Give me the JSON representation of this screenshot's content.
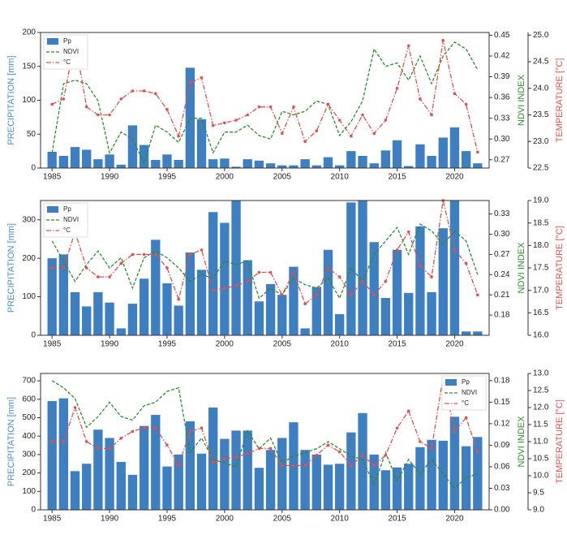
{
  "chart_data": [
    {
      "type": "bar",
      "y_label": "PRECIPITATION [mm]",
      "y2_label": "NDVI INDEX",
      "y3_label": "TEMPERATURE [°C]",
      "legend": "upper left",
      "x": [
        1985,
        1986,
        1987,
        1988,
        1989,
        1990,
        1991,
        1992,
        1993,
        1994,
        1995,
        1996,
        1997,
        1998,
        1999,
        2000,
        2001,
        2002,
        2003,
        2004,
        2005,
        2006,
        2007,
        2008,
        2009,
        2010,
        2011,
        2012,
        2013,
        2014,
        2015,
        2016,
        2017,
        2018,
        2019,
        2020,
        2021,
        2022
      ],
      "xlim": [
        1984,
        2023
      ],
      "xticks": [
        1985,
        1990,
        1995,
        2000,
        2005,
        2010,
        2015,
        2020
      ],
      "ylim": [
        0,
        200
      ],
      "yticks": [
        0,
        50,
        100,
        150,
        200
      ],
      "y2lim": [
        0.258,
        0.454
      ],
      "y2ticks": [
        0.27,
        {
          "value": 0.3,
          "label": "0.30"
        },
        0.33,
        0.36,
        0.39,
        0.42,
        0.45
      ],
      "y3lim": [
        22.5,
        25.05
      ],
      "y3ticks": [
        22.5,
        {
          "value": 23,
          "label": "23.0"
        },
        23.5,
        {
          "value": 24,
          "label": "24.0"
        },
        24.5,
        {
          "value": 25,
          "label": "25.0"
        }
      ],
      "series": [
        {
          "name": "Pp",
          "color": "#3d7fc0",
          "values": [
            24,
            18,
            31,
            27,
            13,
            20,
            5,
            63,
            34,
            12,
            20,
            12,
            148,
            72,
            13,
            14,
            2,
            13,
            11,
            7,
            4,
            4,
            13,
            4,
            16,
            4,
            25,
            18,
            7,
            26,
            41,
            3,
            35,
            18,
            45,
            60,
            25,
            7
          ]
        },
        {
          "name": "NDVI",
          "color": "#2e8b2e",
          "axis": "y2",
          "values": [
            0.28,
            0.38,
            0.385,
            0.38,
            0.355,
            0.28,
            0.31,
            0.3,
            0.265,
            0.32,
            0.31,
            0.295,
            0.33,
            0.33,
            0.28,
            0.31,
            0.31,
            0.32,
            0.305,
            0.3,
            0.34,
            0.335,
            0.34,
            0.355,
            0.35,
            0.305,
            0.325,
            0.355,
            0.43,
            0.405,
            0.41,
            0.385,
            0.42,
            0.38,
            0.42,
            0.44,
            0.43,
            0.4
          ]
        },
        {
          "name": "°C",
          "color": "#e05050",
          "axis": "y3",
          "values": [
            23.7,
            23.8,
            24.9,
            23.65,
            23.5,
            23.5,
            23.8,
            23.95,
            23.95,
            23.9,
            23.6,
            23.1,
            24.1,
            24.2,
            23.3,
            23.35,
            23.4,
            23.5,
            23.65,
            23.65,
            23.15,
            23.65,
            23.0,
            23.2,
            23.7,
            23.4,
            23.1,
            23.5,
            23.15,
            23.4,
            24.0,
            24.8,
            23.8,
            23.5,
            24.9,
            23.9,
            23.7,
            22.8
          ]
        }
      ]
    },
    {
      "type": "bar",
      "y_label": "PRECIPITATION [mm]",
      "y2_label": "NDVI INDEX",
      "y3_label": "TEMPERATURE [°C]",
      "legend": "upper left",
      "x": [
        1985,
        1986,
        1987,
        1988,
        1989,
        1990,
        1991,
        1992,
        1993,
        1994,
        1995,
        1996,
        1997,
        1998,
        1999,
        2000,
        2001,
        2002,
        2003,
        2004,
        2005,
        2006,
        2007,
        2008,
        2009,
        2010,
        2011,
        2012,
        2013,
        2014,
        2015,
        2016,
        2017,
        2018,
        2019,
        2020,
        2021,
        2022
      ],
      "xlim": [
        1984,
        2023
      ],
      "xticks": [
        1985,
        1990,
        1995,
        2000,
        2005,
        2010,
        2015,
        2020
      ],
      "ylim": [
        0,
        350
      ],
      "yticks": [
        0,
        100,
        200,
        300
      ],
      "y2lim": [
        0.15,
        0.35
      ],
      "y2ticks": [
        0.18,
        0.21,
        0.24,
        0.27,
        {
          "value": 0.3,
          "label": "0.30"
        },
        0.33
      ],
      "y3lim": [
        16.0,
        19.0
      ],
      "y3ticks": [
        {
          "value": 16,
          "label": "16.0"
        },
        16.5,
        {
          "value": 17,
          "label": "17.0"
        },
        17.5,
        {
          "value": 18,
          "label": "18.0"
        },
        18.5,
        {
          "value": 19,
          "label": "19.0"
        }
      ],
      "series": [
        {
          "name": "Pp",
          "color": "#3d7fc0",
          "values": [
            200,
            210,
            112,
            75,
            112,
            85,
            18,
            82,
            147,
            248,
            135,
            77,
            215,
            170,
            320,
            292,
            350,
            195,
            88,
            133,
            105,
            178,
            18,
            125,
            222,
            55,
            345,
            350,
            242,
            97,
            222,
            110,
            283,
            112,
            278,
            350,
            10,
            10
          ]
        },
        {
          "name": "NDVI",
          "color": "#2e8b2e",
          "axis": "y2",
          "values": [
            0.29,
            0.26,
            0.23,
            0.255,
            0.275,
            0.25,
            0.265,
            0.22,
            0.265,
            0.275,
            0.265,
            0.25,
            0.23,
            0.24,
            0.235,
            0.26,
            0.255,
            0.26,
            0.205,
            0.22,
            0.21,
            0.235,
            0.225,
            0.22,
            0.235,
            0.205,
            0.25,
            0.23,
            0.27,
            0.29,
            0.31,
            0.27,
            0.315,
            0.305,
            0.285,
            0.305,
            0.29,
            0.24
          ]
        },
        {
          "name": "°C",
          "color": "#e05050",
          "axis": "y3",
          "values": [
            17.5,
            17.5,
            18.3,
            17.5,
            17.3,
            17.3,
            17.6,
            17.8,
            17.8,
            17.8,
            17.5,
            16.8,
            17.8,
            17.9,
            17.0,
            17.05,
            17.1,
            17.2,
            17.4,
            17.4,
            16.9,
            17.4,
            16.7,
            16.9,
            17.5,
            17.3,
            16.9,
            17.2,
            16.9,
            17.2,
            17.9,
            18.3,
            17.55,
            17.3,
            19.0,
            17.9,
            17.6,
            16.9
          ]
        }
      ]
    },
    {
      "type": "bar",
      "y_label": "PRECIPITATION [mm]",
      "y2_label": "NDVI INDEX",
      "y3_label": "TEMPERATURE [°C]",
      "legend": "upper right",
      "x": [
        1985,
        1986,
        1987,
        1988,
        1989,
        1990,
        1991,
        1992,
        1993,
        1994,
        1995,
        1996,
        1997,
        1998,
        1999,
        2000,
        2001,
        2002,
        2003,
        2004,
        2005,
        2006,
        2007,
        2008,
        2009,
        2010,
        2011,
        2012,
        2013,
        2014,
        2015,
        2016,
        2017,
        2018,
        2019,
        2020,
        2021,
        2022
      ],
      "xlim": [
        1984,
        2023
      ],
      "xticks": [
        1985,
        1990,
        1995,
        2000,
        2005,
        2010,
        2015,
        2020
      ],
      "ylim": [
        0,
        740
      ],
      "yticks": [
        0,
        100,
        200,
        300,
        400,
        500,
        600,
        700
      ],
      "y2lim": [
        0,
        0.19
      ],
      "y2ticks": [
        {
          "value": 0,
          "label": "0.00"
        },
        0.03,
        0.06,
        0.09,
        0.12,
        0.15,
        0.18
      ],
      "y3lim": [
        9.0,
        13.0
      ],
      "y3ticks": [
        {
          "value": 9,
          "label": "9.0"
        },
        9.5,
        {
          "value": 10,
          "label": "10.0"
        },
        10.5,
        {
          "value": 11,
          "label": "11.0"
        },
        11.5,
        {
          "value": 12,
          "label": "12.0"
        },
        12.5,
        {
          "value": 13,
          "label": "13.0"
        }
      ],
      "series": [
        {
          "name": "Pp",
          "color": "#3d7fc0",
          "values": [
            590,
            605,
            210,
            250,
            435,
            390,
            260,
            190,
            455,
            515,
            235,
            300,
            480,
            305,
            555,
            385,
            430,
            430,
            228,
            325,
            390,
            475,
            325,
            300,
            245,
            250,
            420,
            525,
            300,
            215,
            230,
            250,
            340,
            380,
            375,
            505,
            345,
            395
          ]
        },
        {
          "name": "NDVI",
          "color": "#2e8b2e",
          "axis": "y2",
          "values": [
            0.18,
            0.17,
            0.155,
            0.115,
            0.13,
            0.15,
            0.13,
            0.125,
            0.145,
            0.15,
            0.165,
            0.17,
            0.08,
            0.1,
            0.07,
            0.065,
            0.06,
            0.11,
            0.085,
            0.1,
            0.065,
            0.075,
            0.08,
            0.085,
            0.095,
            0.085,
            0.075,
            0.07,
            0.035,
            0.08,
            0.04,
            0.07,
            0.05,
            0.07,
            0.05,
            0.03,
            0.045,
            0.05
          ]
        },
        {
          "name": "°C",
          "color": "#e05050",
          "axis": "y3",
          "values": [
            11.0,
            11.0,
            12.0,
            11.0,
            10.8,
            10.8,
            11.1,
            11.3,
            11.4,
            11.4,
            10.9,
            10.3,
            11.3,
            11.4,
            10.4,
            10.5,
            10.55,
            10.65,
            10.8,
            10.8,
            10.3,
            10.3,
            10.3,
            10.6,
            10.9,
            10.7,
            10.3,
            10.6,
            10.3,
            10.6,
            11.4,
            11.9,
            11.0,
            10.8,
            12.9,
            11.3,
            11.7,
            10.7
          ]
        }
      ]
    }
  ]
}
